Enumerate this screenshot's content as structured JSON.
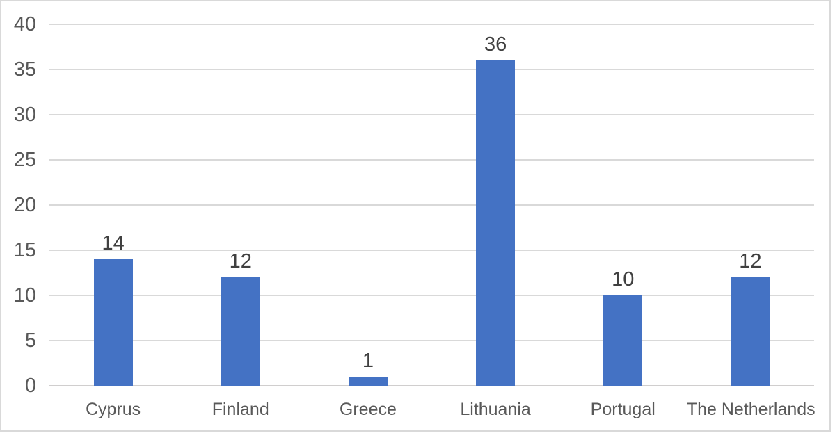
{
  "chart_data": {
    "type": "bar",
    "title": "",
    "xlabel": "",
    "ylabel": "",
    "categories": [
      "Cyprus",
      "Finland",
      "Greece",
      "Lithuania",
      "Portugal",
      "The Netherlands"
    ],
    "values": [
      14,
      12,
      1,
      36,
      10,
      12
    ],
    "data_labels": [
      "14",
      "12",
      "1",
      "36",
      "10",
      "12"
    ],
    "yticks": [
      0,
      5,
      10,
      15,
      20,
      25,
      30,
      35,
      40
    ],
    "ytick_labels": [
      "0",
      "5",
      "10",
      "15",
      "20",
      "25",
      "30",
      "35",
      "40"
    ],
    "ylim": [
      0,
      40
    ],
    "grid": true,
    "legend": false,
    "colors": {
      "bar": "#4472C4",
      "gridline": "#D9D9D9",
      "axis_line": "#D0CECE",
      "tick_label_text": "#595959",
      "data_label_text": "#404040",
      "background": "#FFFFFF",
      "frame_border": "#D9D9D9"
    }
  }
}
